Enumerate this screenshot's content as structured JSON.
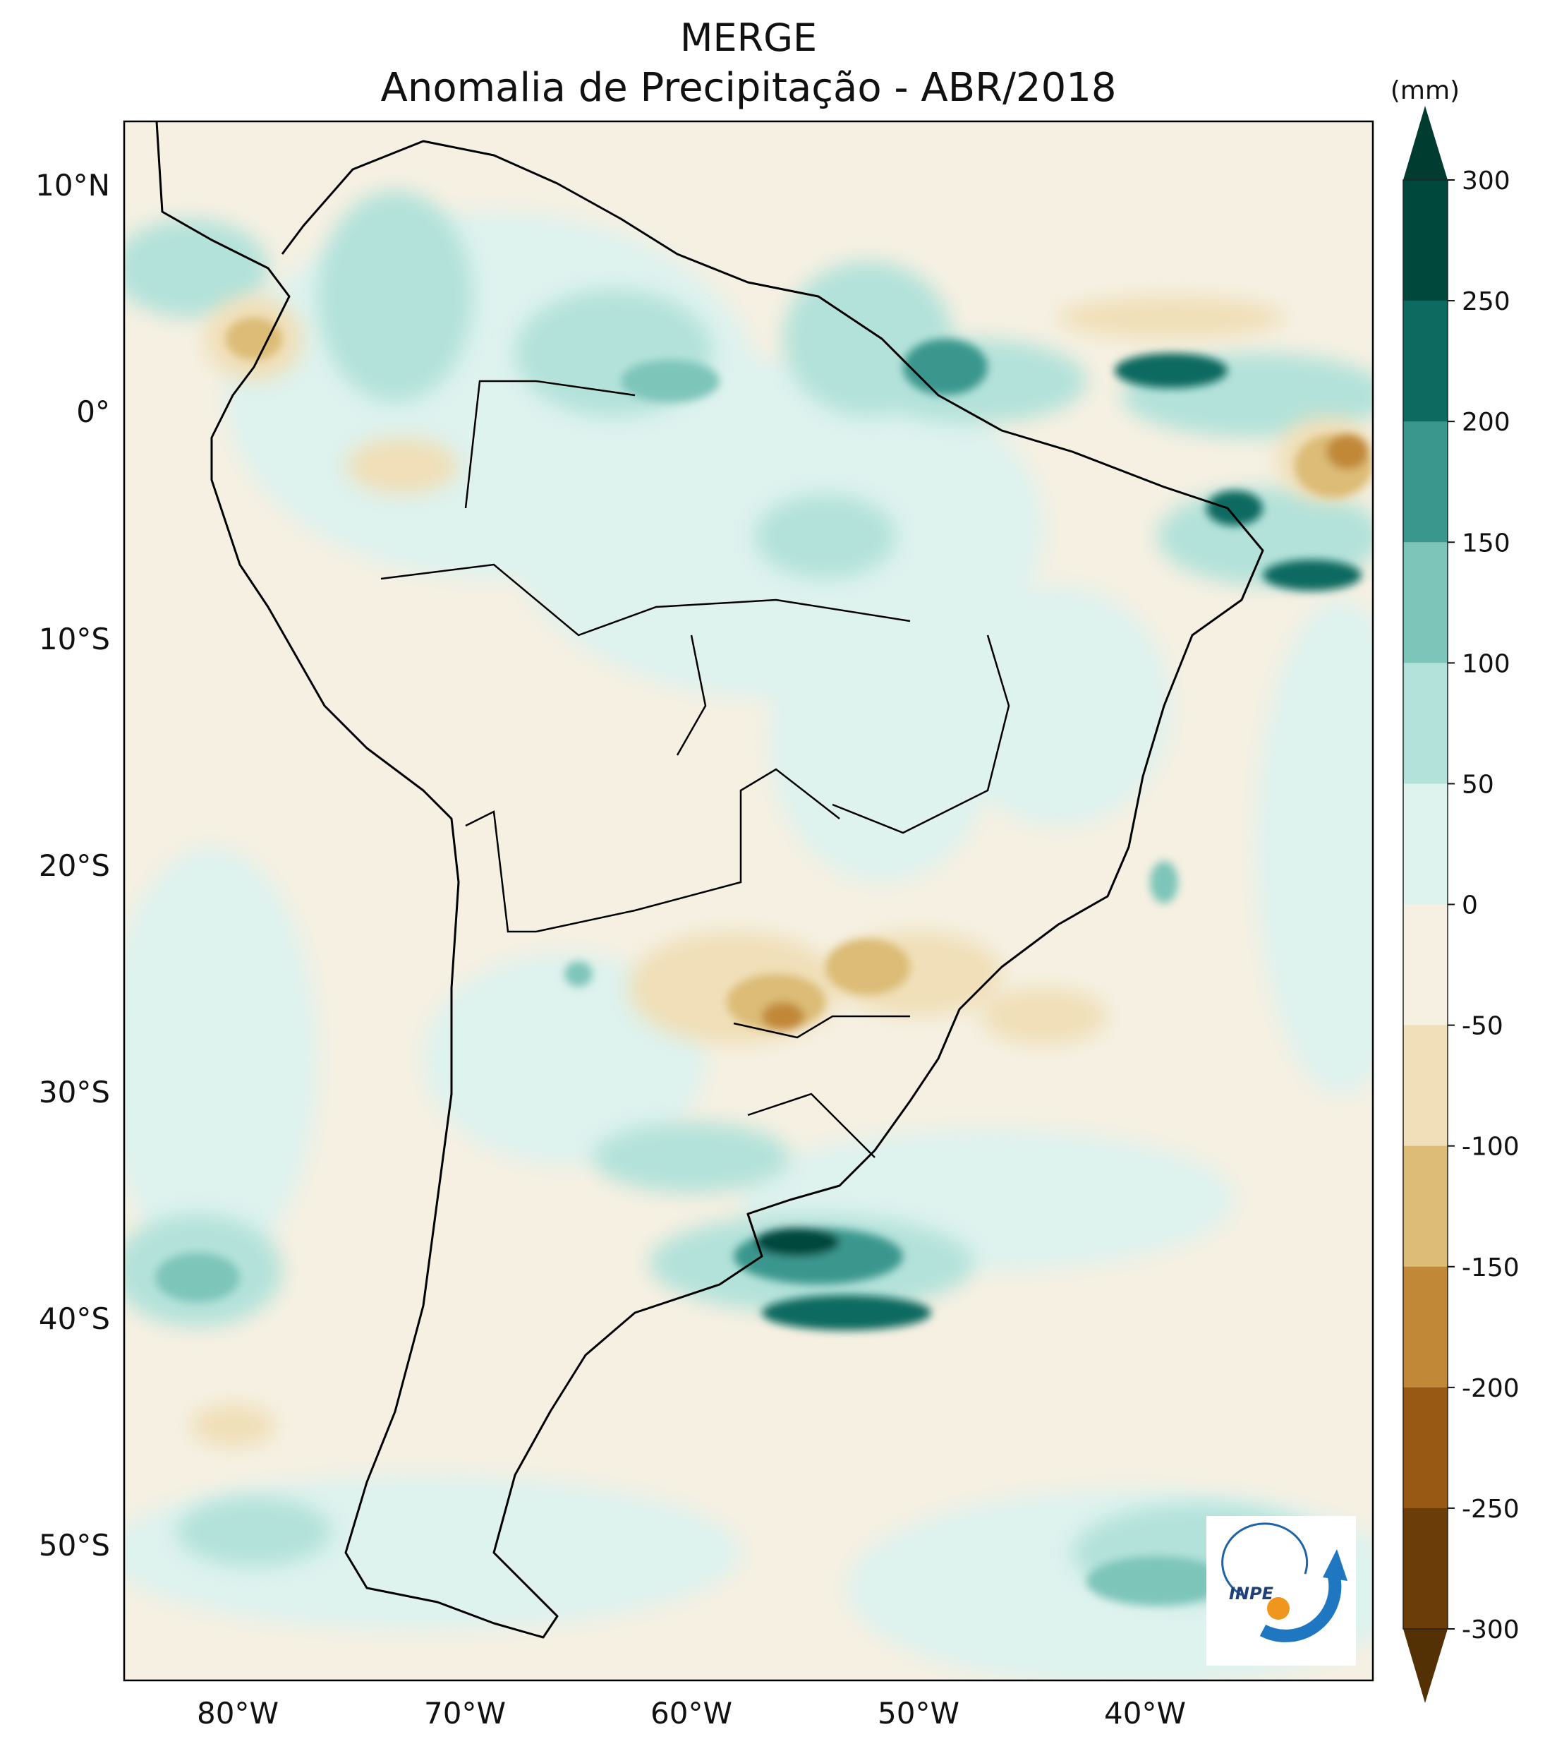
{
  "map": {
    "title_line1": "MERGE",
    "title_line2": "Anomalia de Precipitação - ABR/2018",
    "lon_ticks": [
      "80°W",
      "70°W",
      "60°W",
      "50°W",
      "40°W"
    ],
    "lat_ticks": [
      "10°N",
      "0°",
      "10°S",
      "20°S",
      "30°S",
      "40°S",
      "50°S"
    ],
    "logo_text": "INPE"
  },
  "colorbar": {
    "unit": "(mm)",
    "labels": [
      "300",
      "250",
      "200",
      "150",
      "100",
      "50",
      "0",
      "-50",
      "-100",
      "-150",
      "-200",
      "-250",
      "-300"
    ],
    "colors_top_to_bottom": [
      "#00473c",
      "#0c6a60",
      "#3a978d",
      "#7ec5b9",
      "#b3e2da",
      "#def2ee",
      "#f5f0e2",
      "#f0dfb8",
      "#dcbc76",
      "#c18838",
      "#985915",
      "#6b3d08"
    ],
    "over_color": "#003c30",
    "under_color": "#543005"
  },
  "colors": {
    "ocean": "#f5f0e2",
    "land": "#f5f0e2"
  }
}
